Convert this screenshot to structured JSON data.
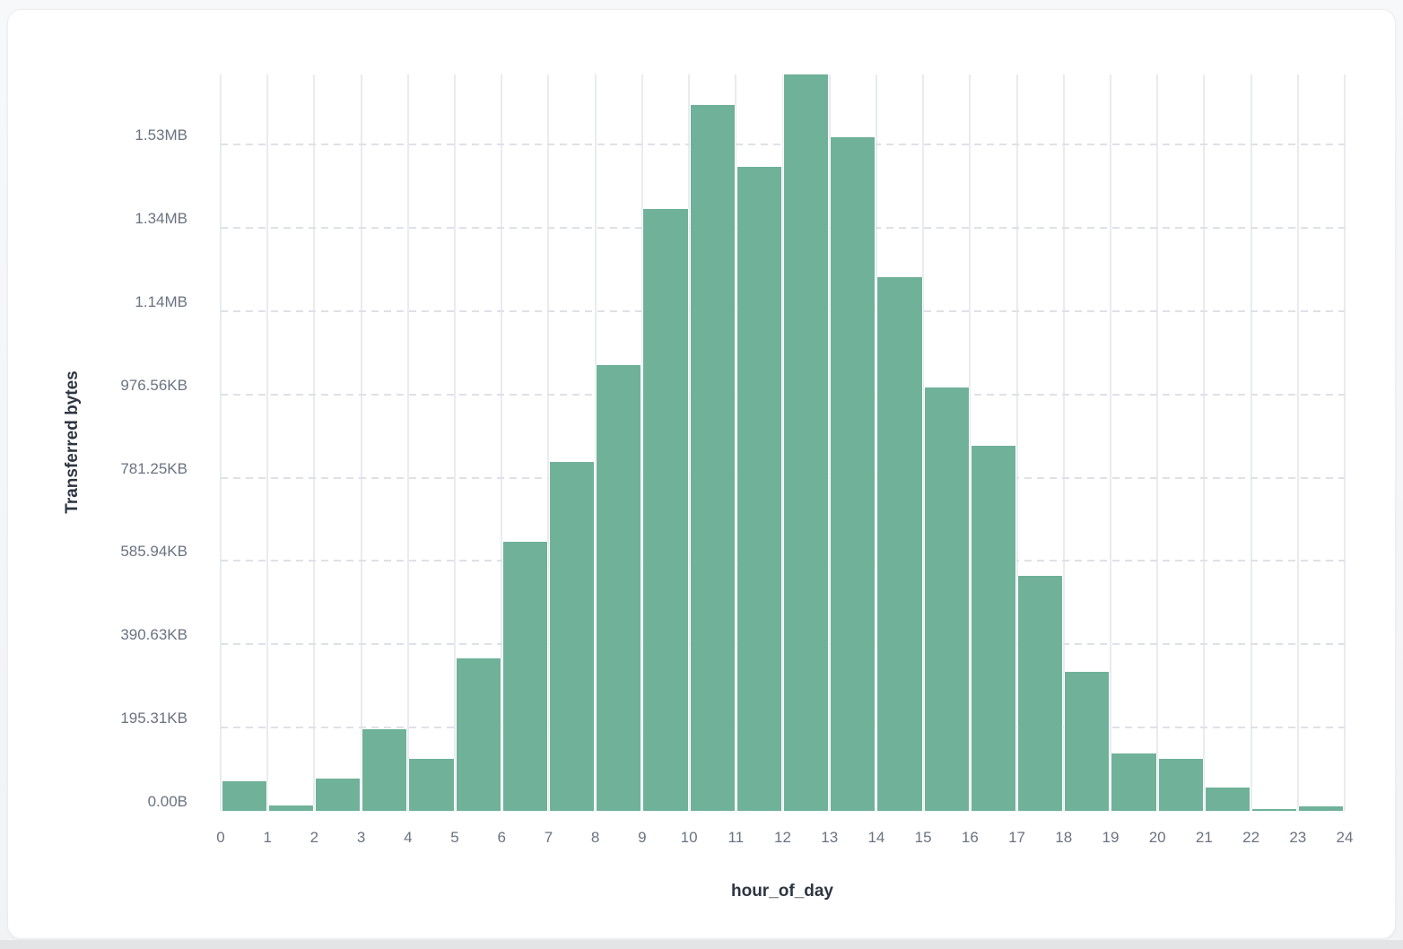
{
  "page": {
    "background_color": "#F4F5F7",
    "card_background_color": "#FFFFFF"
  },
  "chart_data": {
    "type": "bar",
    "title": "",
    "xlabel": "hour_of_day",
    "ylabel": "Transferred bytes",
    "categories": [
      0,
      1,
      2,
      3,
      4,
      5,
      6,
      7,
      8,
      9,
      10,
      11,
      12,
      13,
      14,
      15,
      16,
      17,
      18,
      19,
      20,
      21,
      22,
      23
    ],
    "values": [
      71000,
      13000,
      77000,
      197000,
      125000,
      367000,
      645000,
      838000,
      1070000,
      1446000,
      1695000,
      1547000,
      1768000,
      1618000,
      1282000,
      1016000,
      877000,
      565000,
      333000,
      137000,
      125000,
      56000,
      4000,
      10000
    ],
    "values_unit": "bytes",
    "ylim": [
      0,
      1768000
    ],
    "grid": true,
    "legend": "none",
    "x_tick_labels": [
      "0",
      "1",
      "2",
      "3",
      "4",
      "5",
      "6",
      "7",
      "8",
      "9",
      "10",
      "11",
      "12",
      "13",
      "14",
      "15",
      "16",
      "17",
      "18",
      "19",
      "20",
      "21",
      "22",
      "23",
      "24"
    ],
    "y_ticks": [
      {
        "value": 0,
        "label": "0.00B"
      },
      {
        "value": 200000,
        "label": "195.31KB"
      },
      {
        "value": 400000,
        "label": "390.63KB"
      },
      {
        "value": 600000,
        "label": "585.94KB"
      },
      {
        "value": 800000,
        "label": "781.25KB"
      },
      {
        "value": 1000000,
        "label": "976.56KB"
      },
      {
        "value": 1200000,
        "label": "1.14MB"
      },
      {
        "value": 1400000,
        "label": "1.34MB"
      },
      {
        "value": 1600000,
        "label": "1.53MB"
      }
    ],
    "colors": {
      "bar_fill": "#6FB199",
      "vertical_gridline": "#E9EBEF",
      "horizontal_gridline_dashed": "#DEE1E7",
      "tick_label": "#6B7280",
      "axis_title": "#2F3541"
    }
  }
}
